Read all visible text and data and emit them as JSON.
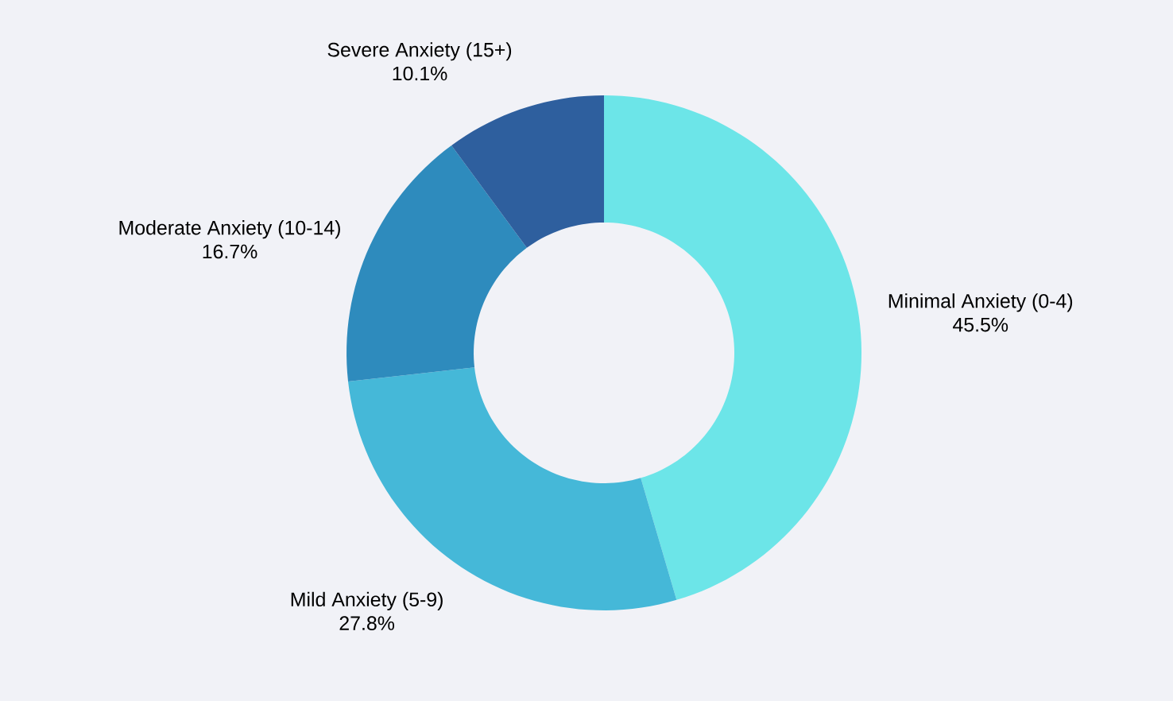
{
  "chart_data": {
    "type": "donut",
    "categories": [
      "Minimal Anxiety (0-4)",
      "Mild Anxiety (5-9)",
      "Moderate Anxiety (10-14)",
      "Severe Anxiety (15+)"
    ],
    "values": [
      45.5,
      27.8,
      16.7,
      10.1
    ],
    "value_labels": [
      "45.5%",
      "27.8%",
      "16.7%",
      "10.1%"
    ],
    "colors": [
      "#6ce5e8",
      "#45b8d8",
      "#2e8bbd",
      "#2e5f9e"
    ]
  }
}
